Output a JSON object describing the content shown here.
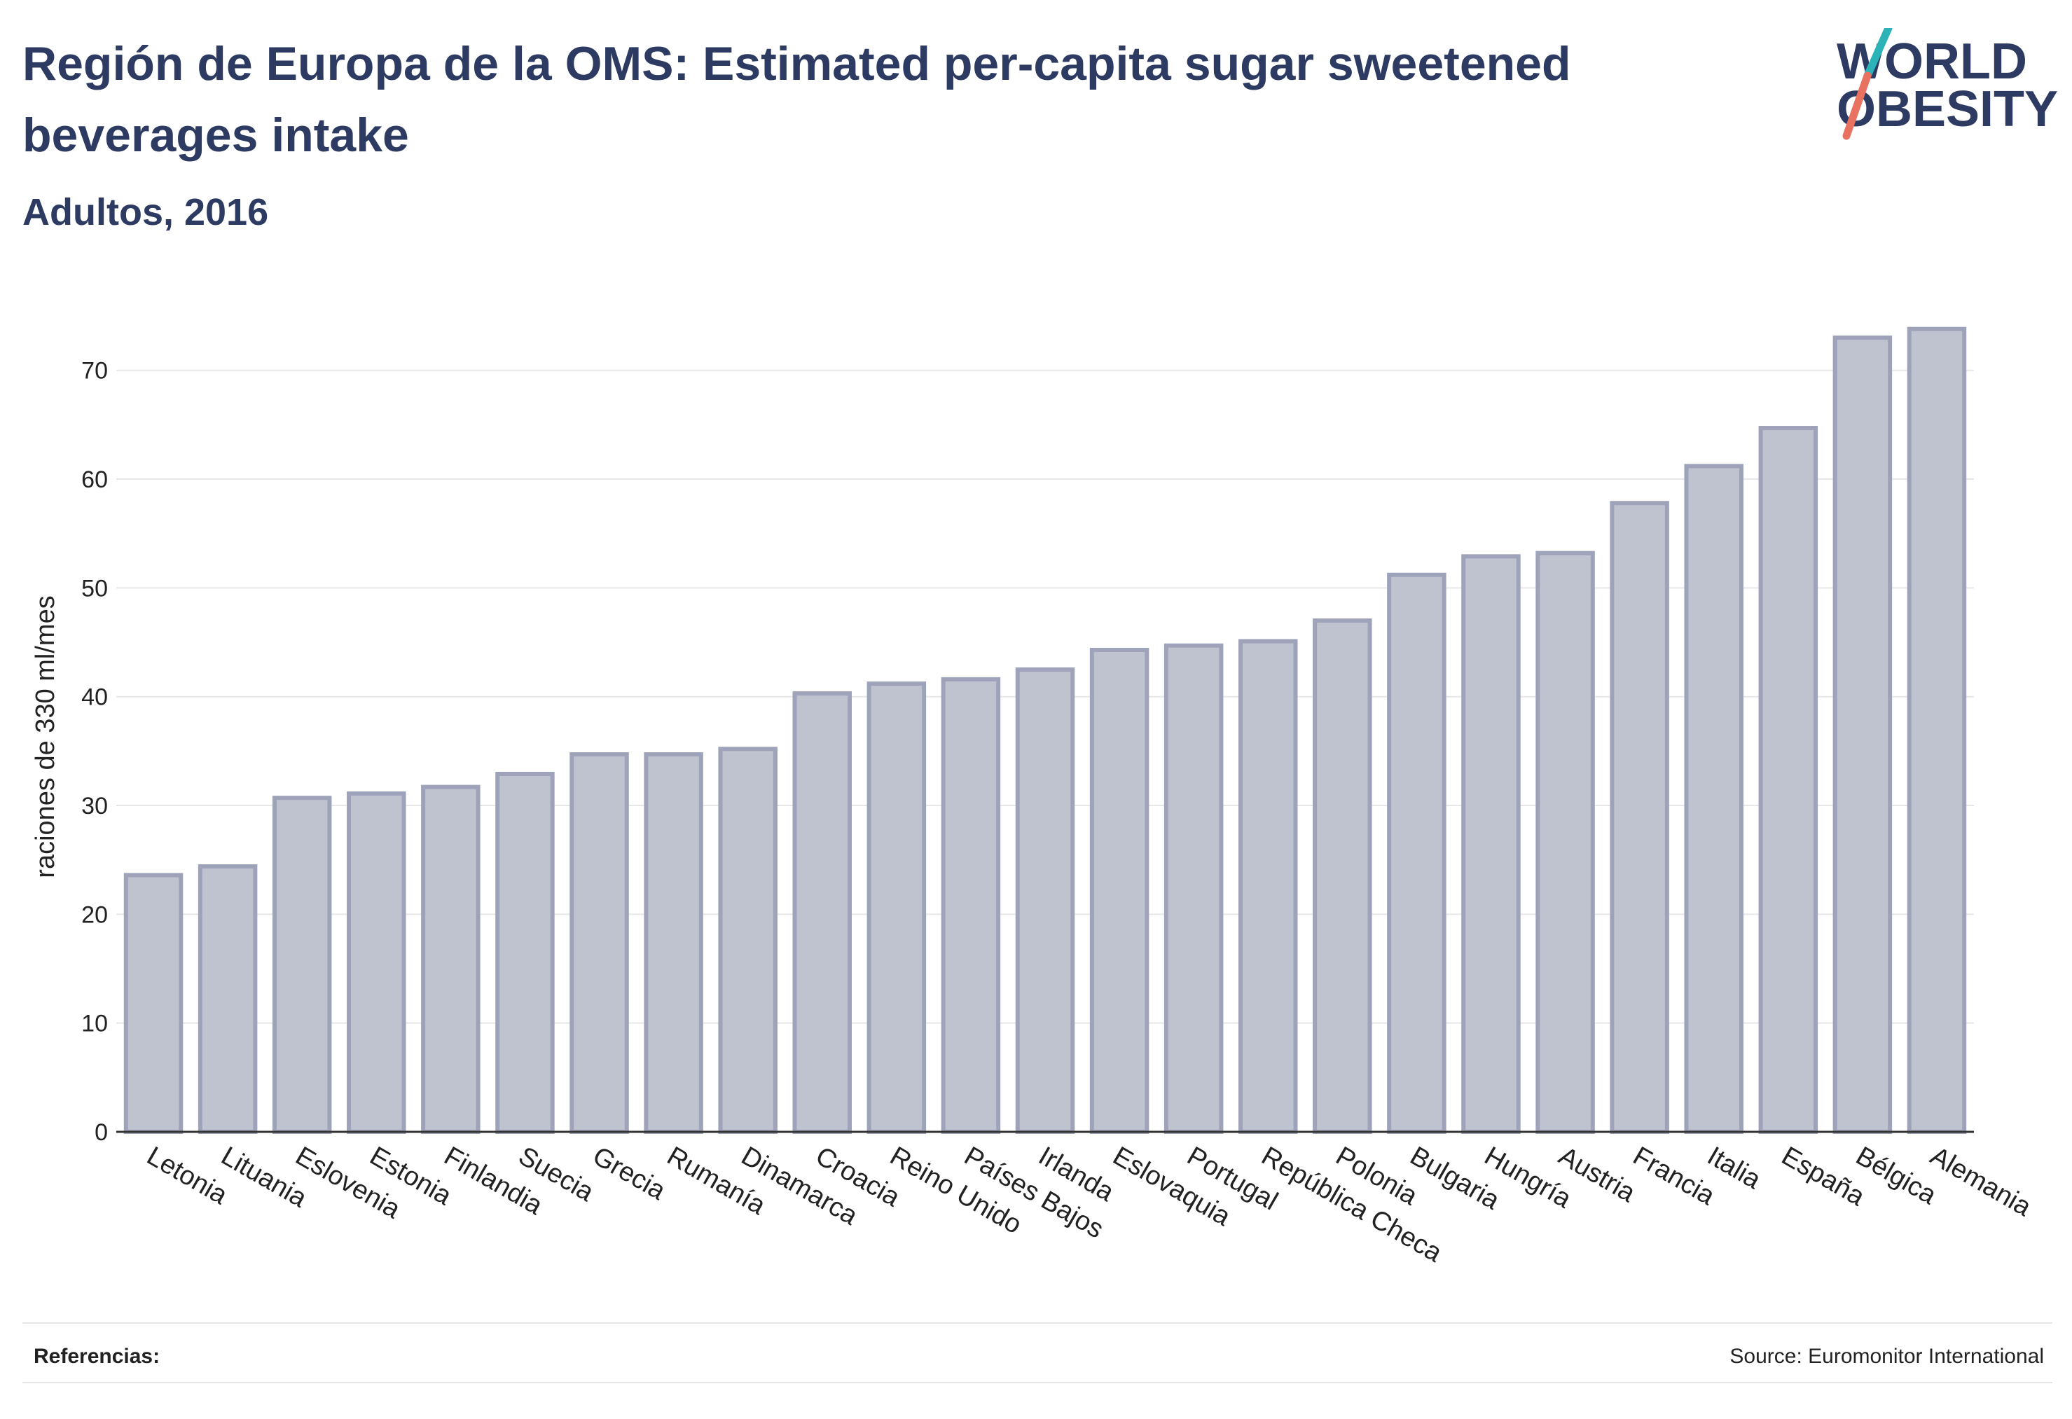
{
  "header": {
    "title": "Región de Europa de la OMS: Estimated per-capita sugar sweetened beverages intake",
    "subtitle": "Adultos, 2016"
  },
  "logo": {
    "line1": "WORLD",
    "line2": "OBESITY",
    "text_color": "#2d3a62",
    "slash_top_color": "#2bb3b8",
    "slash_bottom_color": "#e8715f"
  },
  "footer": {
    "left": "Referencias:",
    "right": "Source: Euromonitor International"
  },
  "colors": {
    "bar_fill": "#bfc2cf",
    "bar_stroke": "#9ea3ba",
    "grid": "#e7e7ea",
    "axis": "#333333",
    "text": "#222222"
  },
  "chart_data": {
    "type": "bar",
    "ylabel": "raciones de 330 ml/mes",
    "xlabel": "",
    "ylim": [
      0,
      77
    ],
    "yticks": [
      0,
      10,
      20,
      30,
      40,
      50,
      60,
      70
    ],
    "grid": true,
    "categories": [
      "Letonia",
      "Lituania",
      "Eslovenia",
      "Estonia",
      "Finlandia",
      "Suecia",
      "Grecia",
      "Rumanía",
      "Dinamarca",
      "Croacia",
      "Reino Unido",
      "Países Bajos",
      "Irlanda",
      "Eslovaquia",
      "Portugal",
      "República Checa",
      "Polonia",
      "Bulgaria",
      "Hungría",
      "Austria",
      "Francia",
      "Italia",
      "España",
      "Bélgica",
      "Alemania"
    ],
    "values": [
      23.6,
      24.4,
      30.7,
      31.1,
      31.7,
      32.9,
      34.7,
      34.7,
      35.2,
      40.3,
      41.2,
      41.6,
      42.5,
      44.3,
      44.7,
      45.1,
      47.0,
      51.2,
      52.9,
      53.2,
      57.8,
      61.2,
      64.7,
      73.0,
      73.8
    ]
  }
}
